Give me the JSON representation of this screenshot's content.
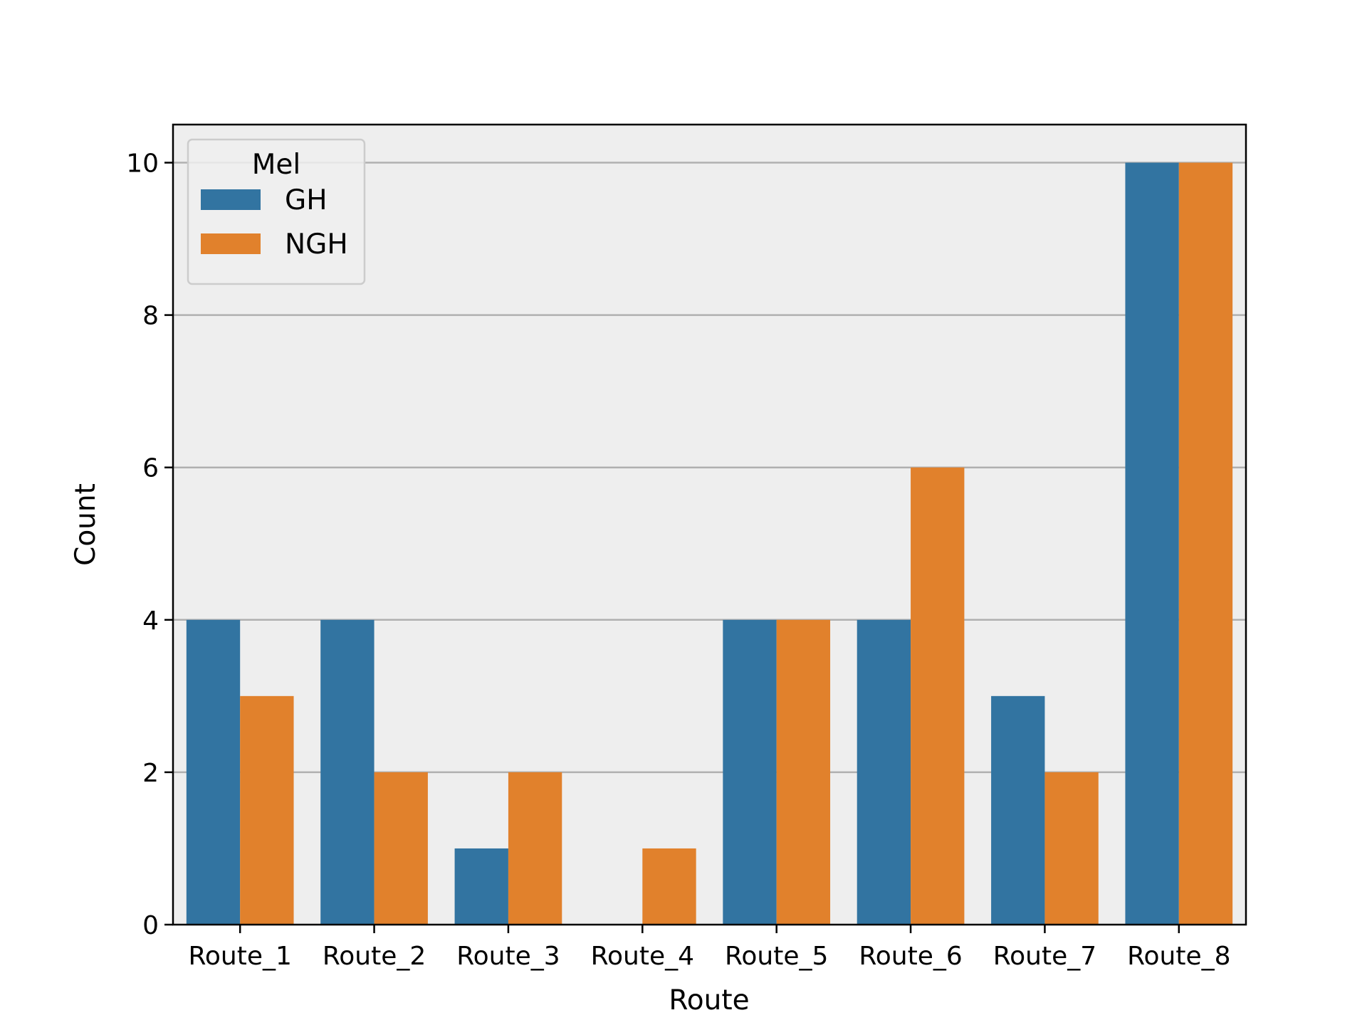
{
  "chart_data": {
    "type": "bar",
    "title": "",
    "xlabel": "Route",
    "ylabel": "Count",
    "categories": [
      "Route_1",
      "Route_2",
      "Route_3",
      "Route_4",
      "Route_5",
      "Route_6",
      "Route_7",
      "Route_8"
    ],
    "series": [
      {
        "name": "GH",
        "color": "#3274a1",
        "values": [
          4,
          4,
          1,
          0,
          4,
          4,
          3,
          10
        ]
      },
      {
        "name": "NGH",
        "color": "#e1812c",
        "values": [
          3,
          2,
          2,
          1,
          4,
          6,
          2,
          10
        ]
      }
    ],
    "ylim": [
      0,
      10.5
    ],
    "yticks": [
      0,
      2,
      4,
      6,
      8,
      10
    ],
    "grid": "y",
    "legend": {
      "title": "Mel",
      "placement": "top-left"
    },
    "background_color": "#eeeeee",
    "grid_color": "#b0b0b0"
  }
}
